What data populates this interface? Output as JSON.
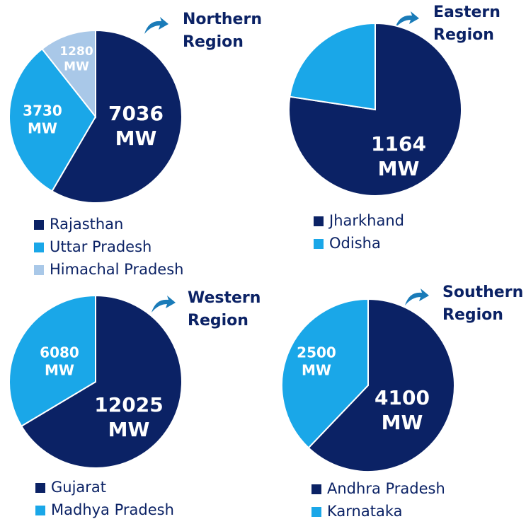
{
  "chart_data": [
    {
      "type": "pie",
      "title": "Northern Region",
      "unit": "MW",
      "categories": [
        "Rajasthan",
        "Uttar Pradesh",
        "Himachal Pradesh"
      ],
      "values": [
        7036,
        3730,
        1280
      ],
      "colors": [
        "#0b2265",
        "#1aa7e8",
        "#a9c8e8"
      ]
    },
    {
      "type": "pie",
      "title": "Eastern Region",
      "unit": "MW",
      "categories": [
        "Jharkhand",
        "Odisha"
      ],
      "values": [
        1164,
        340
      ],
      "colors": [
        "#0b2265",
        "#1aa7e8"
      ]
    },
    {
      "type": "pie",
      "title": "Western Region",
      "unit": "MW",
      "categories": [
        "Gujarat",
        "Madhya Pradesh"
      ],
      "values": [
        12025,
        6080
      ],
      "colors": [
        "#0b2265",
        "#1aa7e8"
      ]
    },
    {
      "type": "pie",
      "title": "Southern Region",
      "unit": "MW",
      "categories": [
        "Andhra Pradesh",
        "Karnataka"
      ],
      "values": [
        4100,
        2500
      ],
      "colors": [
        "#0b2265",
        "#1aa7e8"
      ]
    }
  ]
}
